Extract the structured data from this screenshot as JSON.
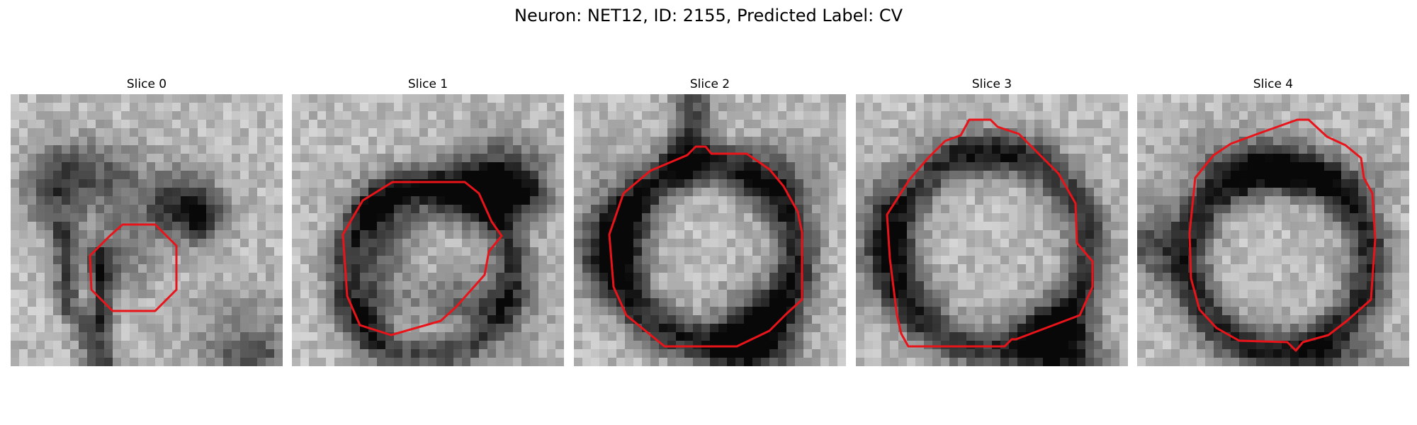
{
  "figure": {
    "title": "Neuron: NET12, ID: 2155, Predicted Label: CV"
  },
  "slices": [
    {
      "title": "Slice 0"
    },
    {
      "title": "Slice 1"
    },
    {
      "title": "Slice 2"
    },
    {
      "title": "Slice 3"
    },
    {
      "title": "Slice 4"
    }
  ],
  "colors": {
    "contour": "#e8141a",
    "background": "#ffffff"
  }
}
